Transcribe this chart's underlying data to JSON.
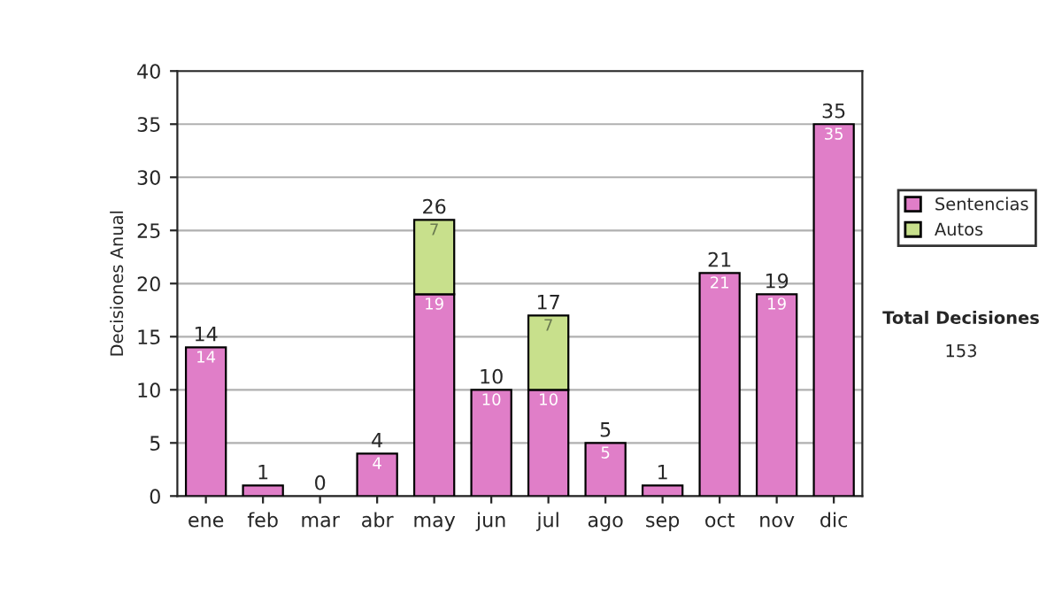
{
  "chart_data": {
    "type": "bar",
    "stacked": true,
    "ylabel": "Decisiones Anual",
    "categories": [
      "ene",
      "feb",
      "mar",
      "abr",
      "may",
      "jun",
      "jul",
      "ago",
      "sep",
      "oct",
      "nov",
      "dic"
    ],
    "series": [
      {
        "name": "Sentencias",
        "color": "#e07ec8",
        "values": [
          14,
          1,
          0,
          4,
          19,
          10,
          10,
          5,
          1,
          21,
          19,
          35
        ],
        "value_labels": [
          "14",
          null,
          null,
          "4",
          "19",
          "10",
          "10",
          "5",
          null,
          "21",
          "19",
          "35"
        ]
      },
      {
        "name": "Autos",
        "color": "#c8e08c",
        "values": [
          0,
          0,
          0,
          0,
          7,
          0,
          7,
          0,
          0,
          0,
          0,
          0
        ],
        "value_labels": [
          null,
          null,
          null,
          null,
          "7",
          null,
          "7",
          null,
          null,
          null,
          null,
          null
        ]
      }
    ],
    "totals": [
      "14",
      "1",
      "0",
      "4",
      "26",
      "10",
      "17",
      "5",
      "1",
      "21",
      "19",
      "35"
    ],
    "ylim": [
      0,
      40
    ],
    "yticks": [
      0,
      5,
      10,
      15,
      20,
      25,
      30,
      35,
      40
    ],
    "grid": "y",
    "legend": "right",
    "annotations": [
      "Total Decisiones",
      "153"
    ]
  }
}
